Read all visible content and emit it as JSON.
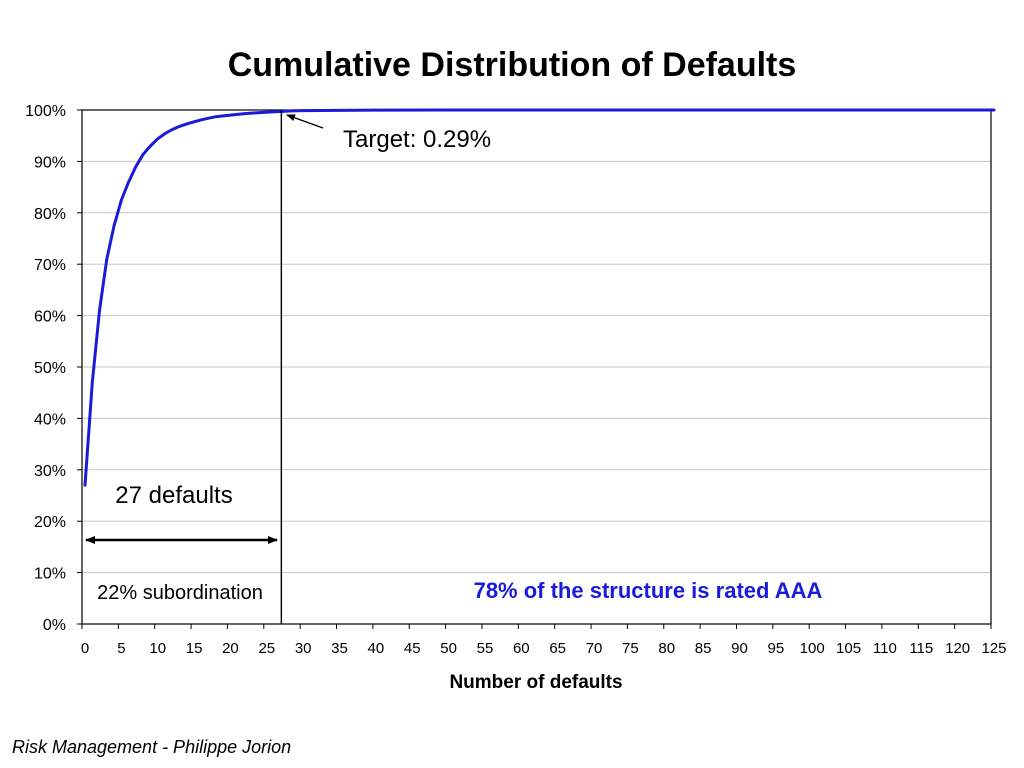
{
  "footer": "Risk Management - Philippe Jorion",
  "chart_data": {
    "type": "line",
    "title": "Cumulative Distribution of Defaults",
    "xlabel": "Number of defaults",
    "ylabel": "",
    "xlim": [
      0,
      125
    ],
    "ylim": [
      0,
      1
    ],
    "grid": true,
    "x_ticks": [
      "0",
      "5",
      "10",
      "15",
      "20",
      "25",
      "30",
      "35",
      "40",
      "45",
      "50",
      "55",
      "60",
      "65",
      "70",
      "75",
      "80",
      "85",
      "90",
      "95",
      "100",
      "105",
      "110",
      "115",
      "120",
      "125"
    ],
    "y_ticks": [
      "0%",
      "10%",
      "20%",
      "30%",
      "40%",
      "50%",
      "60%",
      "70%",
      "80%",
      "90%",
      "100%"
    ],
    "series": [
      {
        "x": [
          0,
          1,
          2,
          3,
          4,
          5,
          6,
          7,
          8,
          9,
          10,
          11,
          12,
          13,
          14,
          15,
          16,
          17,
          18,
          19,
          20,
          22,
          24,
          26,
          27,
          28,
          30,
          40,
          50,
          60,
          70,
          80,
          90,
          100,
          110,
          120,
          125
        ],
        "values": [
          0.27,
          0.47,
          0.61,
          0.71,
          0.775,
          0.825,
          0.86,
          0.89,
          0.914,
          0.93,
          0.944,
          0.954,
          0.962,
          0.968,
          0.973,
          0.977,
          0.981,
          0.984,
          0.987,
          0.9885,
          0.99,
          0.993,
          0.995,
          0.9965,
          0.9971,
          0.998,
          0.9988,
          0.9998,
          1.0,
          1.0,
          1.0,
          1.0,
          1.0,
          1.0,
          1.0,
          1.0,
          1.0
        ],
        "color": "#1a1adb"
      }
    ],
    "vline_x": 27,
    "annotations": {
      "target": "Target: 0.29%",
      "defaults": "27 defaults",
      "subordination": "22% subordination",
      "aaa": "78% of the structure is rated AAA"
    },
    "colors": {
      "line": "#1a1adb",
      "aaa_text": "#1a1adb",
      "grid": "#c8c8c8",
      "axis": "#000000"
    }
  }
}
